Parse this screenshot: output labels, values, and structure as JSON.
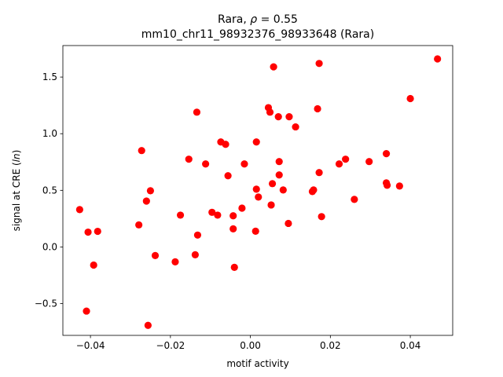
{
  "chart_data": {
    "type": "scatter",
    "title_line1_prefix": "Rara, ",
    "title_rho_symbol": "ρ",
    "title_rho_value": " = 0.55",
    "title_line2": "mm10_chr11_98932376_98933648 (Rara)",
    "xlabel": "motif activity",
    "ylabel_prefix": "signal at CRE (",
    "ylabel_italic": "ln",
    "ylabel_suffix": ")",
    "xlim": [
      -0.0469,
      0.0506
    ],
    "ylim": [
      -0.7804,
      1.7781
    ],
    "xticks": [
      -0.04,
      -0.02,
      0.0,
      0.02,
      0.04
    ],
    "xtick_labels": [
      "−0.04",
      "−0.02",
      "0.00",
      "0.02",
      "0.04"
    ],
    "yticks": [
      -0.5,
      0.0,
      0.5,
      1.0,
      1.5
    ],
    "ytick_labels": [
      "−0.5",
      "0.0",
      "0.5",
      "1.0",
      "1.5"
    ],
    "marker_color": "#ff0000",
    "grid": false,
    "points": [
      {
        "x": -0.0427,
        "y": 0.33
      },
      {
        "x": -0.041,
        "y": -0.566
      },
      {
        "x": -0.0406,
        "y": 0.131
      },
      {
        "x": -0.0392,
        "y": -0.16
      },
      {
        "x": -0.0382,
        "y": 0.138
      },
      {
        "x": -0.0279,
        "y": 0.195
      },
      {
        "x": -0.0272,
        "y": 0.851
      },
      {
        "x": -0.026,
        "y": 0.405
      },
      {
        "x": -0.0256,
        "y": -0.692
      },
      {
        "x": -0.025,
        "y": 0.496
      },
      {
        "x": -0.0238,
        "y": -0.076
      },
      {
        "x": -0.0188,
        "y": -0.131
      },
      {
        "x": -0.0175,
        "y": 0.281
      },
      {
        "x": -0.0154,
        "y": 0.775
      },
      {
        "x": -0.0138,
        "y": -0.069
      },
      {
        "x": -0.0134,
        "y": 1.19
      },
      {
        "x": -0.0132,
        "y": 0.105
      },
      {
        "x": -0.0112,
        "y": 0.733
      },
      {
        "x": -0.0096,
        "y": 0.306
      },
      {
        "x": -0.0082,
        "y": 0.281
      },
      {
        "x": -0.0074,
        "y": 0.927
      },
      {
        "x": -0.0062,
        "y": 0.906
      },
      {
        "x": -0.0056,
        "y": 0.629
      },
      {
        "x": -0.0043,
        "y": 0.275
      },
      {
        "x": -0.0043,
        "y": 0.16
      },
      {
        "x": -0.004,
        "y": -0.18
      },
      {
        "x": -0.0021,
        "y": 0.343
      },
      {
        "x": -0.0015,
        "y": 0.733
      },
      {
        "x": 0.0013,
        "y": 0.139
      },
      {
        "x": 0.0015,
        "y": 0.51
      },
      {
        "x": 0.0015,
        "y": 0.927
      },
      {
        "x": 0.002,
        "y": 0.441
      },
      {
        "x": 0.0045,
        "y": 1.23
      },
      {
        "x": 0.0049,
        "y": 1.19
      },
      {
        "x": 0.0052,
        "y": 0.371
      },
      {
        "x": 0.0055,
        "y": 0.559
      },
      {
        "x": 0.0058,
        "y": 1.59
      },
      {
        "x": 0.007,
        "y": 1.15
      },
      {
        "x": 0.0072,
        "y": 0.754
      },
      {
        "x": 0.0072,
        "y": 0.636
      },
      {
        "x": 0.0082,
        "y": 0.503
      },
      {
        "x": 0.0095,
        "y": 0.208
      },
      {
        "x": 0.0097,
        "y": 1.15
      },
      {
        "x": 0.0113,
        "y": 1.06
      },
      {
        "x": 0.0155,
        "y": 0.489
      },
      {
        "x": 0.0158,
        "y": 0.503
      },
      {
        "x": 0.0168,
        "y": 1.22
      },
      {
        "x": 0.0172,
        "y": 0.657
      },
      {
        "x": 0.0172,
        "y": 1.62
      },
      {
        "x": 0.0178,
        "y": 0.268
      },
      {
        "x": 0.0222,
        "y": 0.733
      },
      {
        "x": 0.0238,
        "y": 0.775
      },
      {
        "x": 0.026,
        "y": 0.42
      },
      {
        "x": 0.0297,
        "y": 0.754
      },
      {
        "x": 0.034,
        "y": 0.824
      },
      {
        "x": 0.034,
        "y": 0.566
      },
      {
        "x": 0.0342,
        "y": 0.545
      },
      {
        "x": 0.0373,
        "y": 0.538
      },
      {
        "x": 0.04,
        "y": 1.31
      },
      {
        "x": 0.0468,
        "y": 1.66
      }
    ]
  }
}
